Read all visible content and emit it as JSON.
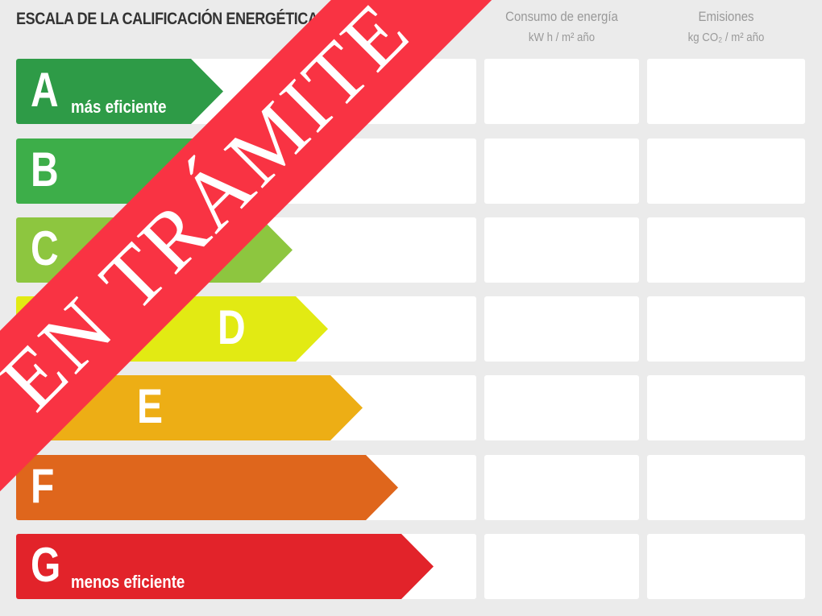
{
  "title": "ESCALA DE LA CALIFICACIÓN ENERGÉTICA",
  "columns": [
    {
      "label": "Consumo de energía",
      "unit": "kW h / m² año"
    },
    {
      "label": "Emisiones",
      "unit": "kg CO₂ / m² año"
    }
  ],
  "ratings": [
    {
      "letter": "A",
      "note": "más eficiente",
      "color": "#2e9b47"
    },
    {
      "letter": "B",
      "note": "",
      "color": "#3dae49"
    },
    {
      "letter": "C",
      "note": "",
      "color": "#8dc63f"
    },
    {
      "letter": "D",
      "note": "",
      "color": "#e2ea13"
    },
    {
      "letter": "E",
      "note": "",
      "color": "#edae15"
    },
    {
      "letter": "F",
      "note": "",
      "color": "#df661c"
    },
    {
      "letter": "G",
      "note": "menos eficiente",
      "color": "#e2232a"
    }
  ],
  "banner": {
    "text": "EN TRÁMITE",
    "color": "#f93343"
  }
}
